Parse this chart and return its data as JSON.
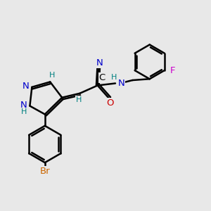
{
  "background_color": "#e8e8e8",
  "bond_color": "#000000",
  "bond_width": 1.8,
  "atom_colors": {
    "N": "#0000cc",
    "O": "#cc0000",
    "Br": "#cc6600",
    "F": "#cc00cc",
    "H": "#008080",
    "C": "#000000"
  },
  "font_size": 9.5,
  "fig_width": 3.0,
  "fig_height": 3.0,
  "dpi": 100,
  "xlim": [
    0,
    10
  ],
  "ylim": [
    0,
    10
  ]
}
